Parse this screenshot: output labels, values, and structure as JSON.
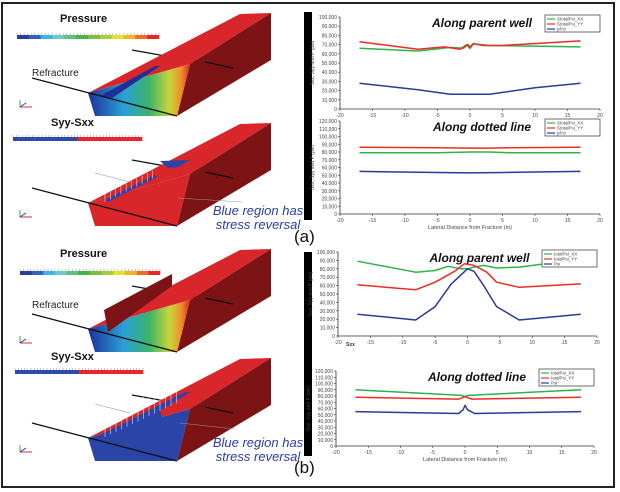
{
  "figure": {
    "panel_a_label": "(a)",
    "panel_b_label": "(b)",
    "renders": [
      {
        "title_top": "Pressure",
        "refracture_label": "Refracture",
        "title_bottom": "Syy-Sxx",
        "note_line1": "Blue region has",
        "note_line2": "stress reversal"
      },
      {
        "title_top": "Pressure",
        "refracture_label": "Refracture",
        "title_bottom": "Syy-Sxx",
        "note_line1": "Blue region has",
        "note_line2": "stress reversal"
      }
    ],
    "colors": {
      "xx": "#2db34a",
      "yy": "#ee2b24",
      "p": "#2a3a9c",
      "rock": "#d8262a",
      "rock_side": "#7c1416",
      "reversal_blue": "#2a44a8"
    }
  },
  "chart_data": [
    {
      "type": "line",
      "panel": "a",
      "title": "Along parent well",
      "ylabel": "Sxx, Syy and P (psi)",
      "xlabel": "",
      "xlim": [
        -20,
        20
      ],
      "ylim": [
        0,
        100000
      ],
      "xticks": [
        -20,
        -15,
        -10,
        -5,
        0,
        5,
        10,
        15,
        20
      ],
      "yticks": [
        "0",
        "10,000",
        "20,000",
        "30,000",
        "40,000",
        "50,000",
        "60,000",
        "70,000",
        "80,000",
        "90,000",
        "100,000"
      ],
      "legend_position": "top-right",
      "series": [
        {
          "name": "StotalPsi_XX",
          "color": "#2db34a",
          "x": [
            -17,
            -8,
            -3,
            -1,
            -0.3,
            0,
            0.5,
            3,
            17
          ],
          "y": [
            66000,
            63000,
            67000,
            66000,
            70000,
            68000,
            71000,
            69000,
            67500
          ]
        },
        {
          "name": "StotalPsi_YY",
          "color": "#ee2b24",
          "x": [
            -17,
            -8,
            -4,
            -1.5,
            -0.5,
            0,
            0.5,
            2,
            5,
            17
          ],
          "y": [
            73000,
            65000,
            67500,
            65000,
            70000,
            66000,
            71000,
            69000,
            69000,
            74000
          ]
        },
        {
          "name": "pPsi",
          "color": "#2a3a9c",
          "x": [
            -17,
            -8,
            -3,
            3,
            10,
            17
          ],
          "y": [
            28000,
            21000,
            16000,
            16000,
            23000,
            28000
          ]
        }
      ]
    },
    {
      "type": "line",
      "panel": "a",
      "title": "Along dotted line",
      "ylabel": "Sxx, Syy and P (psi)",
      "xlabel": "Lateral Distance from Fracture (m)",
      "xlim": [
        -20,
        20
      ],
      "ylim": [
        0,
        120000
      ],
      "xticks": [
        -20,
        -15,
        -10,
        -5,
        0,
        5,
        10,
        15,
        20
      ],
      "yticks": [
        "0",
        "10,000",
        "20,000",
        "30,000",
        "40,000",
        "50,000",
        "60,000",
        "70,000",
        "80,000",
        "90,000",
        "100,000",
        "110,000",
        "120,000"
      ],
      "legend_position": "top-right",
      "series": [
        {
          "name": "StotalPsi_XX",
          "color": "#2db34a",
          "x": [
            -17,
            -5,
            0,
            3,
            6,
            17
          ],
          "y": [
            79000,
            79000,
            80000,
            80000,
            79000,
            79000
          ]
        },
        {
          "name": "StotalPsi_YY",
          "color": "#ee2b24",
          "x": [
            -17,
            -5,
            0,
            3,
            6,
            17
          ],
          "y": [
            86000,
            85500,
            85000,
            85000,
            85500,
            86000
          ]
        },
        {
          "name": "pPsi",
          "color": "#2a3a9c",
          "x": [
            -17,
            -5,
            0,
            5,
            17
          ],
          "y": [
            55000,
            53500,
            53000,
            53500,
            55000
          ]
        }
      ]
    },
    {
      "type": "line",
      "panel": "b",
      "title": "Along parent well",
      "ylabel": "Sxx, Syy and P (psi)",
      "xlabel": "",
      "annotation": "Sxx",
      "xlim": [
        -20,
        20
      ],
      "ylim": [
        0,
        100000
      ],
      "xticks": [
        -20,
        -15,
        -10,
        -5,
        0,
        5,
        10,
        15,
        20
      ],
      "yticks": [
        "0",
        "10,000",
        "20,000",
        "30,000",
        "40,000",
        "50,000",
        "60,000",
        "70,000",
        "80,000",
        "90,000",
        "100,000"
      ],
      "legend_position": "top-right",
      "series": [
        {
          "name": "totalPsi_XX",
          "color": "#2db34a",
          "x": [
            -17,
            -8,
            -5,
            -3,
            -1,
            0,
            1,
            2.5,
            4.5,
            8,
            13,
            17.5
          ],
          "y": [
            89000,
            76000,
            78000,
            83000,
            80000,
            80000,
            82000,
            84000,
            81000,
            82000,
            87000,
            89000
          ]
        },
        {
          "name": "totalPsi_YY",
          "color": "#ee2b24",
          "x": [
            -17,
            -8,
            -5,
            -2,
            -0.5,
            1,
            3,
            4.5,
            8,
            17.5
          ],
          "y": [
            61000,
            55000,
            64000,
            77000,
            86000,
            84000,
            76000,
            64000,
            58000,
            62000
          ]
        },
        {
          "name": "Psi",
          "color": "#2a3a9c",
          "x": [
            -17,
            -8,
            -5,
            -2.5,
            0,
            1,
            2.5,
            4.5,
            8,
            17.5
          ],
          "y": [
            26000,
            19000,
            35000,
            62000,
            80000,
            77000,
            60000,
            35000,
            19000,
            26000
          ]
        }
      ]
    },
    {
      "type": "line",
      "panel": "b",
      "title": "Along dotted line",
      "ylabel": "Sxx, Syy and P (psi)",
      "xlabel": "Lateral Distance from Fracture (m)",
      "xlim": [
        -20,
        20
      ],
      "ylim": [
        0,
        120000
      ],
      "xticks": [
        -20,
        -15,
        -10,
        -5,
        0,
        5,
        10,
        15,
        20
      ],
      "yticks": [
        "0",
        "10,000",
        "20,000",
        "30,000",
        "40,000",
        "50,000",
        "60,000",
        "70,000",
        "80,000",
        "90,000",
        "100,000",
        "110,000",
        "120,000"
      ],
      "legend_position": "top-right",
      "series": [
        {
          "name": "totalPsi_XX",
          "color": "#2db34a",
          "x": [
            -17,
            -0.5,
            0,
            0.5,
            18
          ],
          "y": [
            90000,
            81000,
            79000,
            81000,
            90000
          ]
        },
        {
          "name": "totalPsi_YY",
          "color": "#ee2b24",
          "x": [
            -17,
            -1,
            0,
            1,
            18
          ],
          "y": [
            78000,
            75000,
            79000,
            75000,
            78000
          ]
        },
        {
          "name": "Psi",
          "color": "#2a3a9c",
          "x": [
            -17,
            -1,
            -0.3,
            0,
            0.4,
            1.5,
            18
          ],
          "y": [
            55000,
            52000,
            58000,
            65000,
            58000,
            52000,
            55000
          ]
        }
      ]
    }
  ]
}
